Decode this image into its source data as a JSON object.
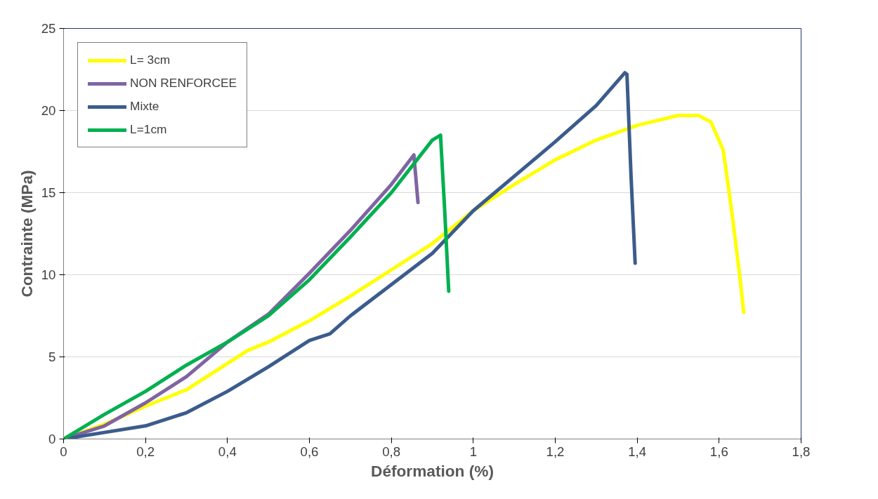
{
  "chart_data": {
    "type": "line",
    "xlabel": "Déformation (%)",
    "ylabel": "Contrainte (MPa)",
    "xlim": [
      0,
      1.8
    ],
    "ylim": [
      0,
      25
    ],
    "xticks": [
      0,
      {
        "value": 0.2,
        "label": "0,2"
      },
      {
        "value": 0.4,
        "label": "0,4"
      },
      {
        "value": 0.6,
        "label": "0,6"
      },
      {
        "value": 0.8,
        "label": "0,8"
      },
      1,
      {
        "value": 1.2,
        "label": "1,2"
      },
      {
        "value": 1.4,
        "label": "1,4"
      },
      {
        "value": 1.6,
        "label": "1,6"
      },
      {
        "value": 1.8,
        "label": "1,8"
      }
    ],
    "yticks": [
      0,
      5,
      10,
      15,
      20,
      25
    ],
    "grid": "y",
    "legend": "top left",
    "marker": "none",
    "line_style": "solid",
    "series": [
      {
        "name": "L= 3cm",
        "color": "#ffff00",
        "x": [
          0,
          0.1,
          0.2,
          0.3,
          0.4,
          0.45,
          0.5,
          0.6,
          0.7,
          0.8,
          0.9,
          1.0,
          1.1,
          1.2,
          1.3,
          1.4,
          1.5,
          1.55,
          1.58,
          1.61,
          1.63,
          1.65,
          1.66
        ],
        "values": [
          0,
          0.9,
          2.0,
          3.0,
          4.6,
          5.4,
          5.9,
          7.2,
          8.7,
          10.3,
          11.9,
          13.9,
          15.5,
          17.0,
          18.2,
          19.1,
          19.7,
          19.7,
          19.3,
          17.6,
          14,
          10,
          7.7
        ]
      },
      {
        "name": "NON RENFORCEE",
        "color": "#8064a2",
        "x": [
          0,
          0.1,
          0.2,
          0.3,
          0.4,
          0.5,
          0.6,
          0.7,
          0.8,
          0.855,
          0.865
        ],
        "values": [
          0,
          0.8,
          2.2,
          3.8,
          5.9,
          7.6,
          10.1,
          12.7,
          15.5,
          17.3,
          14.4
        ]
      },
      {
        "name": "Mixte",
        "color": "#3b5c8c",
        "x": [
          0,
          0.1,
          0.2,
          0.3,
          0.4,
          0.5,
          0.6,
          0.65,
          0.7,
          0.8,
          0.9,
          1.0,
          1.1,
          1.2,
          1.3,
          1.37,
          1.375,
          1.385,
          1.395
        ],
        "values": [
          0,
          0.4,
          0.8,
          1.6,
          2.9,
          4.4,
          6.0,
          6.4,
          7.5,
          9.4,
          11.3,
          13.9,
          16.0,
          18.1,
          20.3,
          22.3,
          22.2,
          16,
          10.7
        ]
      },
      {
        "name": "L=1cm",
        "color": "#00b050",
        "x": [
          0,
          0.1,
          0.2,
          0.3,
          0.4,
          0.5,
          0.6,
          0.7,
          0.8,
          0.9,
          0.92,
          0.93,
          0.94
        ],
        "values": [
          0,
          1.5,
          2.9,
          4.5,
          5.9,
          7.5,
          9.7,
          12.3,
          15.0,
          18.2,
          18.5,
          14,
          9.0
        ]
      }
    ]
  }
}
